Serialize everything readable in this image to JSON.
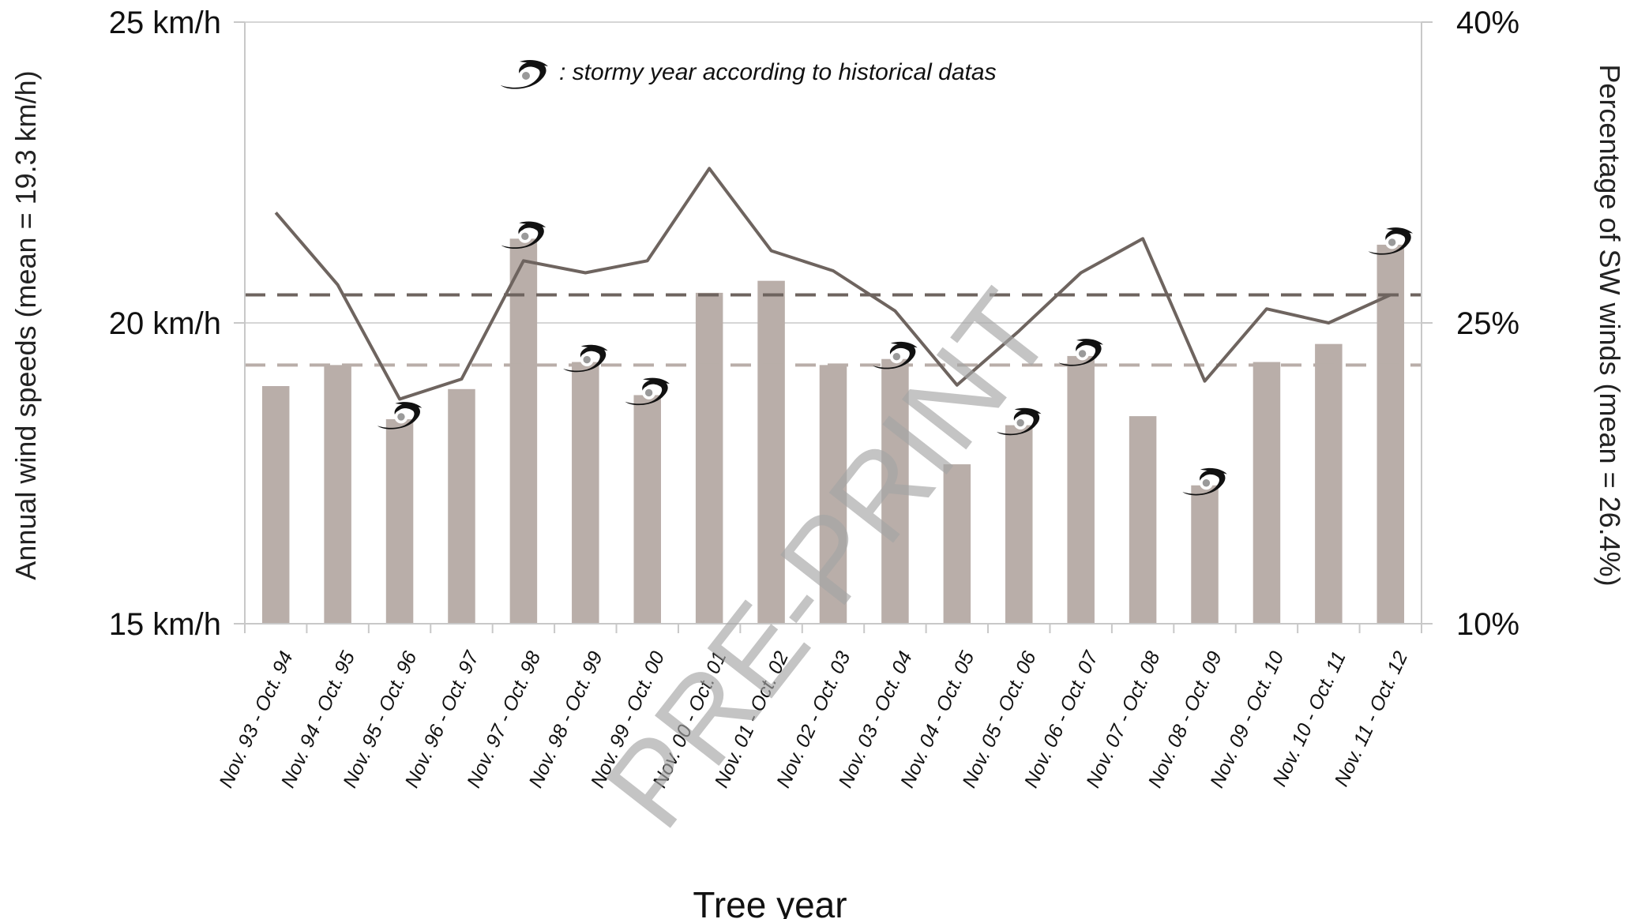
{
  "chart_data": {
    "type": "bar",
    "title": "",
    "xlabel": "Tree year",
    "ylabel_left": "Annual wind speeds (mean = 19.3 km/h)",
    "ylabel_right": "Percentage of SW winds (mean = 26.4%)",
    "categories": [
      "Nov. 93 - Oct. 94",
      "Nov. 94 - Oct. 95",
      "Nov. 95 - Oct. 96",
      "Nov. 96 - Oct. 97",
      "Nov. 97 - Oct. 98",
      "Nov. 98 - Oct. 99",
      "Nov. 99 - Oct. 00",
      "Nov. 00 - Oct. 01",
      "Nov. 01 - Oct. 02",
      "Nov. 02 - Oct. 03",
      "Nov. 03 - Oct. 04",
      "Nov. 04 - Oct. 05",
      "Nov. 05 - Oct. 06",
      "Nov. 06 - Oct. 07",
      "Nov. 07 - Oct. 08",
      "Nov. 08 - Oct. 09",
      "Nov. 09 - Oct. 10",
      "Nov. 10 - Oct. 11",
      "Nov. 11 - Oct. 12"
    ],
    "left_axis": {
      "ylim": [
        15,
        25
      ],
      "ticks": [
        15,
        20,
        25
      ],
      "tick_labels": [
        "15 km/h",
        "20 km/h",
        "25 km/h"
      ]
    },
    "right_axis": {
      "ylim": [
        10,
        40
      ],
      "ticks": [
        10,
        25,
        40
      ],
      "tick_labels": [
        "10%",
        "25%",
        "40%"
      ]
    },
    "series": [
      {
        "type": "bar",
        "axis": "left",
        "color": "#b9aea9",
        "values": [
          18.95,
          19.3,
          18.4,
          18.9,
          21.4,
          19.35,
          18.8,
          20.5,
          20.7,
          19.3,
          19.4,
          17.65,
          18.3,
          19.45,
          18.45,
          17.3,
          19.35,
          19.65,
          21.3
        ]
      },
      {
        "type": "line",
        "axis": "right",
        "color": "#6e645f",
        "values": [
          30.5,
          26.9,
          21.2,
          22.2,
          28.1,
          27.5,
          28.1,
          32.7,
          28.6,
          27.6,
          25.6,
          21.9,
          24.6,
          27.5,
          29.2,
          22.1,
          25.7,
          25.0,
          26.4
        ]
      }
    ],
    "reference_lines": [
      {
        "axis": "right",
        "value": 26.4,
        "color": "#6e645f",
        "style": "dashed"
      },
      {
        "axis": "left",
        "value": 19.3,
        "color": "#b9aea9",
        "style": "dashed"
      }
    ],
    "stormy_marker_indices": [
      2,
      4,
      5,
      6,
      10,
      12,
      13,
      15,
      18
    ],
    "legend": {
      "icon": "storm-icon",
      "text": ": stormy year according to historical datas",
      "placement": "top"
    },
    "watermark": "PRE-PRINT",
    "grid": true
  }
}
